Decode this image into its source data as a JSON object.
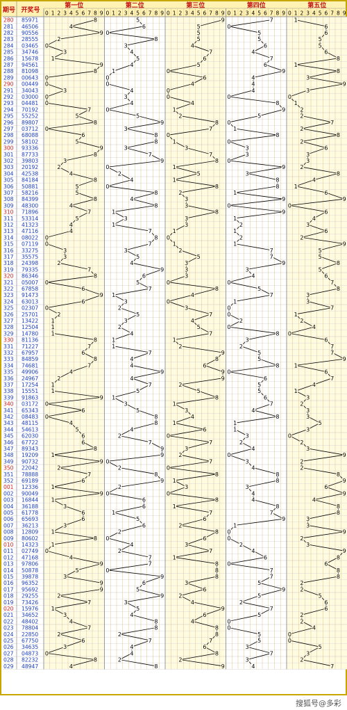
{
  "header": {
    "period_label": "期号",
    "number_label": "开奖号"
  },
  "positions": [
    "第一位",
    "第二位",
    "第三位",
    "第四位",
    "第五位"
  ],
  "digits": [
    "0",
    "1",
    "2",
    "3",
    "4",
    "5",
    "6",
    "7",
    "8",
    "9"
  ],
  "watermark": "搜狐号@多彩",
  "colors": {
    "border": "#c8a600",
    "header_bg": "#fff2b3",
    "period_normal": "#1a3dbf",
    "period_highlight": "#d21f1f",
    "number": "#1a3dbf",
    "position_title": "#c01010",
    "digit": "#000000",
    "grid": "#d8d8d8",
    "grid_col": "#e2c48a",
    "band_a": "#fffbe0",
    "band_b": "#ffffff"
  },
  "chart_data": {
    "type": "table",
    "periods": [
      "280",
      "281",
      "282",
      "283",
      "284",
      "285",
      "286",
      "287",
      "288",
      "289",
      "290",
      "291",
      "292",
      "293",
      "294",
      "295",
      "296",
      "297",
      "298",
      "299",
      "300",
      "301",
      "302",
      "303",
      "304",
      "305",
      "306",
      "307",
      "308",
      "309",
      "310",
      "311",
      "312",
      "313",
      "314",
      "315",
      "316",
      "317",
      "318",
      "319",
      "320",
      "321",
      "322",
      "323",
      "324",
      "325",
      "326",
      "327",
      "328",
      "329",
      "330",
      "331",
      "332",
      "333",
      "334",
      "335",
      "336",
      "337",
      "338",
      "339",
      "340",
      "341",
      "342",
      "343",
      "344",
      "345",
      "346",
      "347",
      "348",
      "349",
      "350",
      "351",
      "352",
      "001",
      "002",
      "003",
      "004",
      "005",
      "006",
      "007",
      "008",
      "009",
      "010",
      "011",
      "012",
      "013",
      "014",
      "015",
      "016",
      "017",
      "018",
      "019",
      "020",
      "021",
      "022",
      "023",
      "024",
      "025",
      "026",
      "027",
      "028",
      "029"
    ],
    "highlight_periods": [
      "280",
      "290",
      "300",
      "310",
      "320",
      "330",
      "340",
      "350",
      "001",
      "010",
      "020"
    ],
    "numbers": [
      "85971",
      "46506",
      "90556",
      "28555",
      "03465",
      "34746",
      "15678",
      "94561",
      "81098",
      "00643",
      "00449",
      "34043",
      "03000",
      "04481",
      "70192",
      "55252",
      "89807",
      "03712",
      "68088",
      "58102",
      "93336",
      "87733",
      "39803",
      "20192",
      "42538",
      "84184",
      "50881",
      "58216",
      "84399",
      "48300",
      "71896",
      "53314",
      "41323",
      "47116",
      "08022",
      "07119",
      "33275",
      "35575",
      "24398",
      "79335",
      "86346",
      "05007",
      "67858",
      "91473",
      "63013",
      "02307",
      "25701",
      "13422",
      "12504",
      "14780",
      "81136",
      "71227",
      "67957",
      "84859",
      "74681",
      "49906",
      "24967",
      "17254",
      "15551",
      "91863",
      "03172",
      "65343",
      "08483",
      "48115",
      "54613",
      "62030",
      "67722",
      "89343",
      "19209",
      "90732",
      "22042",
      "78888",
      "69189",
      "12336",
      "90049",
      "16844",
      "36188",
      "61778",
      "65693",
      "36213",
      "12809",
      "80602",
      "14323",
      "02749",
      "47168",
      "97806",
      "50878",
      "39878",
      "96352",
      "95692",
      "29255",
      "73426",
      "15976",
      "34652",
      "48402",
      "78804",
      "22850",
      "67750",
      "34635",
      "04873",
      "82232",
      "48947"
    ]
  }
}
